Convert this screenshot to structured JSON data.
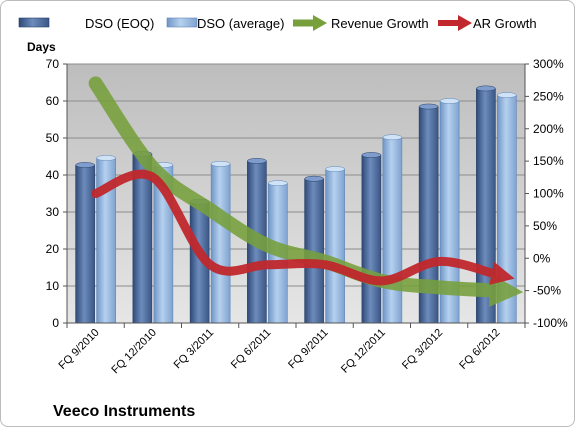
{
  "chart_data": {
    "type": "bar",
    "title": "",
    "company": "Veeco Instruments",
    "y_left_label": "Days",
    "categories": [
      "FQ 9/2010",
      "FQ 12/2010",
      "FQ 3/2011",
      "FQ 6/2011",
      "FQ 9/2011",
      "FQ 12/2011",
      "FQ 3/2012",
      "FQ 6/2012"
    ],
    "ylim_left": [
      0,
      70
    ],
    "yticks_left": [
      0,
      10,
      20,
      30,
      40,
      50,
      60,
      70
    ],
    "ylim_right": [
      -100,
      300
    ],
    "yticks_right": [
      "-100%",
      "-50%",
      "0%",
      "50%",
      "100%",
      "150%",
      "200%",
      "250%",
      "300%"
    ],
    "yticks_right_values": [
      -100,
      -50,
      0,
      50,
      100,
      150,
      200,
      250,
      300
    ],
    "grid": true,
    "legend_position": "top",
    "series": [
      {
        "name": "DSO (EOQ)",
        "kind": "bar",
        "axis": "left",
        "color": "#4f6f9f",
        "values": [
          42.7,
          45.7,
          32.8,
          43.8,
          39.0,
          45.4,
          58.5,
          63.4
        ]
      },
      {
        "name": "DSO (average)",
        "kind": "bar",
        "axis": "left",
        "color": "#8fb4dd",
        "values": [
          44.6,
          42.7,
          43.0,
          37.8,
          41.6,
          50.2,
          60.0,
          61.6
        ]
      },
      {
        "name": "Revenue Growth",
        "kind": "line",
        "axis": "right",
        "color": "#77a03c",
        "values": [
          270,
          140,
          75,
          20,
          -5,
          -35,
          -45,
          -50
        ]
      },
      {
        "name": "AR Growth",
        "kind": "line",
        "axis": "right",
        "color": "#c0282d",
        "values": [
          100,
          125,
          -10,
          -10,
          -10,
          -35,
          -5,
          -25
        ]
      }
    ]
  }
}
